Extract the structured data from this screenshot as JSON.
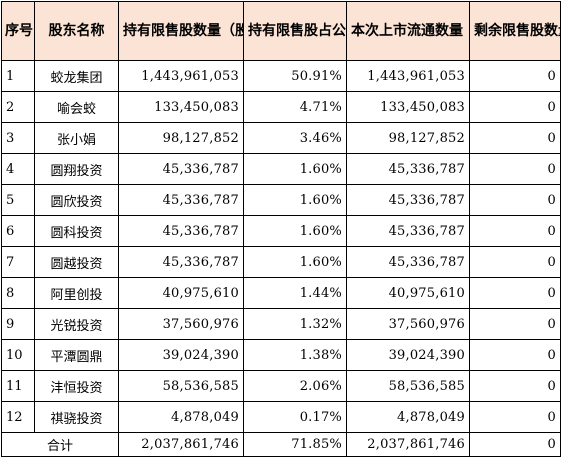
{
  "headers": {
    "seq": "序号",
    "shareholder": "股东名称",
    "restricted_shares": "持有限售股数量（股）",
    "pct_of_total": "持有限售股占公司总股本比例",
    "listed_shares": "本次上市流通数量（股）",
    "remaining_shares": "剩余限售股数量（股）"
  },
  "rows": [
    {
      "seq": "1",
      "name": "蛟龙集团",
      "restricted": "1,443,961,053",
      "pct": "50.91%",
      "listed": "1,443,961,053",
      "remaining": "0"
    },
    {
      "seq": "2",
      "name": "喻会蛟",
      "restricted": "133,450,083",
      "pct": "4.71%",
      "listed": "133,450,083",
      "remaining": "0"
    },
    {
      "seq": "3",
      "name": "张小娟",
      "restricted": "98,127,852",
      "pct": "3.46%",
      "listed": "98,127,852",
      "remaining": "0"
    },
    {
      "seq": "4",
      "name": "圆翔投资",
      "restricted": "45,336,787",
      "pct": "1.60%",
      "listed": "45,336,787",
      "remaining": "0"
    },
    {
      "seq": "5",
      "name": "圆欣投资",
      "restricted": "45,336,787",
      "pct": "1.60%",
      "listed": "45,336,787",
      "remaining": "0"
    },
    {
      "seq": "6",
      "name": "圆科投资",
      "restricted": "45,336,787",
      "pct": "1.60%",
      "listed": "45,336,787",
      "remaining": "0"
    },
    {
      "seq": "7",
      "name": "圆越投资",
      "restricted": "45,336,787",
      "pct": "1.60%",
      "listed": "45,336,787",
      "remaining": "0"
    },
    {
      "seq": "8",
      "name": "阿里创投",
      "restricted": "40,975,610",
      "pct": "1.44%",
      "listed": "40,975,610",
      "remaining": "0"
    },
    {
      "seq": "9",
      "name": "光锐投资",
      "restricted": "37,560,976",
      "pct": "1.32%",
      "listed": "37,560,976",
      "remaining": "0"
    },
    {
      "seq": "10",
      "name": "平潭圆鼎",
      "restricted": "39,024,390",
      "pct": "1.38%",
      "listed": "39,024,390",
      "remaining": "0"
    },
    {
      "seq": "11",
      "name": "沣恒投资",
      "restricted": "58,536,585",
      "pct": "2.06%",
      "listed": "58,536,585",
      "remaining": "0"
    },
    {
      "seq": "12",
      "name": "祺骁投资",
      "restricted": "4,878,049",
      "pct": "0.17%",
      "listed": "4,878,049",
      "remaining": "0"
    }
  ],
  "total": {
    "label": "合计",
    "restricted": "2,037,861,746",
    "pct": "71.85%",
    "listed": "2,037,861,746",
    "remaining": "0"
  },
  "colors": {
    "header_background": "#fbe4d5",
    "border": "#000000"
  }
}
